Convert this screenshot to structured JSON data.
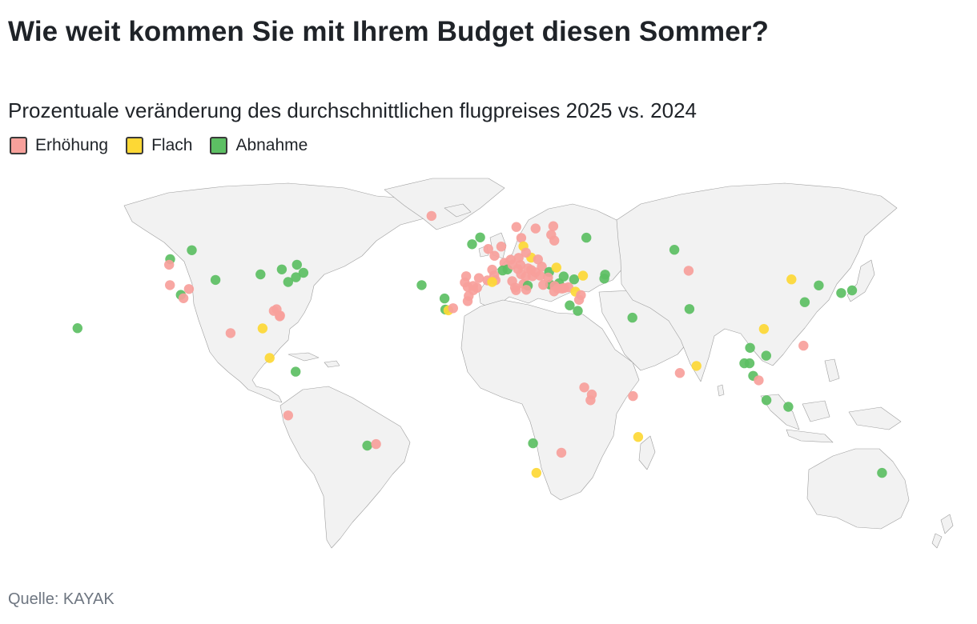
{
  "title": "Wie weit kommen Sie mit Ihrem Budget diesen Sommer?",
  "subtitle": "Prozentuale veränderung des durchschnittlichen flugpreises 2025 vs. 2024",
  "legend": [
    {
      "label": "Erhöhung",
      "color": "#f7a09b"
    },
    {
      "label": "Flach",
      "color": "#fdd835"
    },
    {
      "label": "Abnahme",
      "color": "#5cbf63"
    }
  ],
  "source": "Quelle: KAYAK",
  "chart_data": {
    "type": "scatter",
    "projection": "equirectangular world map",
    "categories": [
      "Erhöhung",
      "Flach",
      "Abnahme"
    ],
    "colors": {
      "Erhöhung": "#f7a09b",
      "Flach": "#fdd835",
      "Abnahme": "#5cbf63",
      "land": "#f2f2f2"
    },
    "points": [
      {
        "lon": -157.9,
        "lat": 21.3,
        "cat": "Abnahme"
      },
      {
        "lon": -122.3,
        "lat": 47.6,
        "cat": "Abnahme"
      },
      {
        "lon": -122.7,
        "lat": 45.5,
        "cat": "Erhöhung"
      },
      {
        "lon": -114.0,
        "lat": 51.0,
        "cat": "Abnahme"
      },
      {
        "lon": -122.4,
        "lat": 37.7,
        "cat": "Erhöhung"
      },
      {
        "lon": -118.2,
        "lat": 34.0,
        "cat": "Abnahme"
      },
      {
        "lon": -117.2,
        "lat": 32.7,
        "cat": "Erhöhung"
      },
      {
        "lon": -115.1,
        "lat": 36.2,
        "cat": "Erhöhung"
      },
      {
        "lon": -104.9,
        "lat": 39.7,
        "cat": "Abnahme"
      },
      {
        "lon": -87.6,
        "lat": 41.8,
        "cat": "Abnahme"
      },
      {
        "lon": -79.4,
        "lat": 43.7,
        "cat": "Abnahme"
      },
      {
        "lon": -73.6,
        "lat": 45.5,
        "cat": "Abnahme"
      },
      {
        "lon": -71.1,
        "lat": 42.4,
        "cat": "Abnahme"
      },
      {
        "lon": -74.0,
        "lat": 40.7,
        "cat": "Abnahme"
      },
      {
        "lon": -77.0,
        "lat": 38.9,
        "cat": "Abnahme"
      },
      {
        "lon": -80.2,
        "lat": 25.8,
        "cat": "Erhöhung"
      },
      {
        "lon": -81.4,
        "lat": 28.5,
        "cat": "Erhöhung"
      },
      {
        "lon": -82.5,
        "lat": 27.9,
        "cat": "Erhöhung"
      },
      {
        "lon": -80.1,
        "lat": 26.1,
        "cat": "Erhöhung"
      },
      {
        "lon": -99.1,
        "lat": 19.4,
        "cat": "Erhöhung"
      },
      {
        "lon": -86.8,
        "lat": 21.2,
        "cat": "Flach"
      },
      {
        "lon": -84.1,
        "lat": 9.9,
        "cat": "Flach"
      },
      {
        "lon": -74.1,
        "lat": 4.7,
        "cat": "Abnahme"
      },
      {
        "lon": -77.0,
        "lat": -12.0,
        "cat": "Erhöhung"
      },
      {
        "lon": -46.6,
        "lat": -23.5,
        "cat": "Abnahme"
      },
      {
        "lon": -43.2,
        "lat": -22.9,
        "cat": "Erhöhung"
      },
      {
        "lon": -21.9,
        "lat": 64.1,
        "cat": "Erhöhung"
      },
      {
        "lon": -25.7,
        "lat": 37.7,
        "cat": "Abnahme"
      },
      {
        "lon": -16.9,
        "lat": 32.6,
        "cat": "Abnahme"
      },
      {
        "lon": -16.6,
        "lat": 28.4,
        "cat": "Abnahme"
      },
      {
        "lon": -15.4,
        "lat": 28.1,
        "cat": "Flach"
      },
      {
        "lon": -13.6,
        "lat": 28.9,
        "cat": "Erhöhung"
      },
      {
        "lon": -6.3,
        "lat": 53.3,
        "cat": "Abnahme"
      },
      {
        "lon": -3.2,
        "lat": 55.9,
        "cat": "Abnahme"
      },
      {
        "lon": -0.1,
        "lat": 51.5,
        "cat": "Erhöhung"
      },
      {
        "lon": 2.3,
        "lat": 48.9,
        "cat": "Erhöhung"
      },
      {
        "lon": 4.9,
        "lat": 52.4,
        "cat": "Erhöhung"
      },
      {
        "lon": 12.6,
        "lat": 55.7,
        "cat": "Erhöhung"
      },
      {
        "lon": 10.7,
        "lat": 59.9,
        "cat": "Erhöhung"
      },
      {
        "lon": 18.1,
        "lat": 59.3,
        "cat": "Erhöhung"
      },
      {
        "lon": 24.9,
        "lat": 60.2,
        "cat": "Erhöhung"
      },
      {
        "lon": 24.1,
        "lat": 56.9,
        "cat": "Erhöhung"
      },
      {
        "lon": 25.3,
        "lat": 54.7,
        "cat": "Erhöhung"
      },
      {
        "lon": 13.4,
        "lat": 52.5,
        "cat": "Flach"
      },
      {
        "lon": 11.6,
        "lat": 48.1,
        "cat": "Erhöhung"
      },
      {
        "lon": 16.4,
        "lat": 48.2,
        "cat": "Flach"
      },
      {
        "lon": 14.4,
        "lat": 50.1,
        "cat": "Erhöhung"
      },
      {
        "lon": 19.0,
        "lat": 47.5,
        "cat": "Erhöhung"
      },
      {
        "lon": 8.5,
        "lat": 47.4,
        "cat": "Erhöhung"
      },
      {
        "lon": 6.1,
        "lat": 46.2,
        "cat": "Erhöhung"
      },
      {
        "lon": 7.3,
        "lat": 43.7,
        "cat": "Abnahme"
      },
      {
        "lon": 5.4,
        "lat": 43.3,
        "cat": "Abnahme"
      },
      {
        "lon": 1.4,
        "lat": 43.6,
        "cat": "Erhöhung"
      },
      {
        "lon": -8.6,
        "lat": 41.1,
        "cat": "Erhöhung"
      },
      {
        "lon": -9.1,
        "lat": 38.7,
        "cat": "Erhöhung"
      },
      {
        "lon": -3.7,
        "lat": 40.4,
        "cat": "Erhöhung"
      },
      {
        "lon": 2.2,
        "lat": 41.4,
        "cat": "Erhöhung"
      },
      {
        "lon": -0.4,
        "lat": 39.5,
        "cat": "Erhöhung"
      },
      {
        "lon": -4.4,
        "lat": 36.7,
        "cat": "Erhöhung"
      },
      {
        "lon": -8.0,
        "lat": 37.0,
        "cat": "Erhöhung"
      },
      {
        "lon": -5.9,
        "lat": 37.4,
        "cat": "Erhöhung"
      },
      {
        "lon": 2.7,
        "lat": 39.6,
        "cat": "Erhöhung"
      },
      {
        "lon": 1.4,
        "lat": 38.9,
        "cat": "Flach"
      },
      {
        "lon": 9.2,
        "lat": 45.5,
        "cat": "Erhöhung"
      },
      {
        "lon": 12.3,
        "lat": 45.4,
        "cat": "Erhöhung"
      },
      {
        "lon": 11.3,
        "lat": 43.8,
        "cat": "Erhöhung"
      },
      {
        "lon": 12.5,
        "lat": 41.9,
        "cat": "Erhöhung"
      },
      {
        "lon": 14.3,
        "lat": 40.9,
        "cat": "Erhöhung"
      },
      {
        "lon": 9.1,
        "lat": 39.2,
        "cat": "Erhöhung"
      },
      {
        "lon": 13.4,
        "lat": 38.1,
        "cat": "Erhöhung"
      },
      {
        "lon": 15.1,
        "lat": 37.5,
        "cat": "Abnahme"
      },
      {
        "lon": 16.9,
        "lat": 41.1,
        "cat": "Erhöhung"
      },
      {
        "lon": 14.5,
        "lat": 35.9,
        "cat": "Erhöhung"
      },
      {
        "lon": 16.4,
        "lat": 43.5,
        "cat": "Erhöhung"
      },
      {
        "lon": 18.1,
        "lat": 42.6,
        "cat": "Erhöhung"
      },
      {
        "lon": 15.2,
        "lat": 44.1,
        "cat": "Erhöhung"
      },
      {
        "lon": 20.5,
        "lat": 44.8,
        "cat": "Erhöhung"
      },
      {
        "lon": 19.8,
        "lat": 41.3,
        "cat": "Erhöhung"
      },
      {
        "lon": 23.3,
        "lat": 42.7,
        "cat": "Abnahme"
      },
      {
        "lon": 26.1,
        "lat": 44.4,
        "cat": "Flach"
      },
      {
        "lon": 28.9,
        "lat": 41.0,
        "cat": "Abnahme"
      },
      {
        "lon": 32.9,
        "lat": 39.9,
        "cat": "Abnahme"
      },
      {
        "lon": 30.7,
        "lat": 36.9,
        "cat": "Erhöhung"
      },
      {
        "lon": 27.1,
        "lat": 38.4,
        "cat": "Abnahme"
      },
      {
        "lon": 29.1,
        "lat": 36.6,
        "cat": "Erhöhung"
      },
      {
        "lon": 23.7,
        "lat": 37.9,
        "cat": "Abnahme"
      },
      {
        "lon": 22.9,
        "lat": 40.6,
        "cat": "Erhöhung"
      },
      {
        "lon": 25.4,
        "lat": 37.4,
        "cat": "Erhöhung"
      },
      {
        "lon": 25.2,
        "lat": 35.3,
        "cat": "Erhöhung"
      },
      {
        "lon": 21.0,
        "lat": 37.8,
        "cat": "Erhöhung"
      },
      {
        "lon": 26.6,
        "lat": 36.4,
        "cat": "Erhöhung"
      },
      {
        "lon": 28.2,
        "lat": 36.4,
        "cat": "Erhöhung"
      },
      {
        "lon": 33.4,
        "lat": 35.2,
        "cat": "Flach"
      },
      {
        "lon": 35.5,
        "lat": 33.9,
        "cat": "Erhöhung"
      },
      {
        "lon": 34.8,
        "lat": 32.1,
        "cat": "Erhöhung"
      },
      {
        "lon": 36.3,
        "lat": 41.3,
        "cat": "Flach"
      },
      {
        "lon": 44.8,
        "lat": 41.7,
        "cat": "Abnahme"
      },
      {
        "lon": 44.5,
        "lat": 40.2,
        "cat": "Abnahme"
      },
      {
        "lon": 37.6,
        "lat": 55.8,
        "cat": "Abnahme"
      },
      {
        "lon": 31.2,
        "lat": 30.0,
        "cat": "Abnahme"
      },
      {
        "lon": 34.3,
        "lat": 27.9,
        "cat": "Abnahme"
      },
      {
        "lon": 10.2,
        "lat": 36.8,
        "cat": "Erhöhung"
      },
      {
        "lon": 10.6,
        "lat": 35.8,
        "cat": "Erhöhung"
      },
      {
        "lon": -7.6,
        "lat": 33.6,
        "cat": "Erhöhung"
      },
      {
        "lon": -8.0,
        "lat": 31.6,
        "cat": "Erhöhung"
      },
      {
        "lon": -5.8,
        "lat": 35.8,
        "cat": "Erhöhung"
      },
      {
        "lon": 55.3,
        "lat": 25.3,
        "cat": "Abnahme"
      },
      {
        "lon": 71.4,
        "lat": 51.2,
        "cat": "Abnahme"
      },
      {
        "lon": 76.9,
        "lat": 43.2,
        "cat": "Erhöhung"
      },
      {
        "lon": 77.2,
        "lat": 28.6,
        "cat": "Abnahme"
      },
      {
        "lon": 73.5,
        "lat": 4.2,
        "cat": "Erhöhung"
      },
      {
        "lon": 79.9,
        "lat": 6.9,
        "cat": "Flach"
      },
      {
        "lon": 36.8,
        "lat": -1.3,
        "cat": "Erhöhung"
      },
      {
        "lon": 39.7,
        "lat": -4.0,
        "cat": "Erhöhung"
      },
      {
        "lon": 39.2,
        "lat": -6.2,
        "cat": "Erhöhung"
      },
      {
        "lon": 55.5,
        "lat": -4.6,
        "cat": "Erhöhung"
      },
      {
        "lon": 57.5,
        "lat": -20.2,
        "cat": "Flach"
      },
      {
        "lon": 17.1,
        "lat": -22.6,
        "cat": "Abnahme"
      },
      {
        "lon": 28.0,
        "lat": -26.2,
        "cat": "Erhöhung"
      },
      {
        "lon": 18.4,
        "lat": -33.9,
        "cat": "Flach"
      },
      {
        "lon": 116.4,
        "lat": 39.9,
        "cat": "Flach"
      },
      {
        "lon": 126.9,
        "lat": 37.6,
        "cat": "Abnahme"
      },
      {
        "lon": 121.5,
        "lat": 31.2,
        "cat": "Abnahme"
      },
      {
        "lon": 139.7,
        "lat": 35.7,
        "cat": "Abnahme"
      },
      {
        "lon": 135.5,
        "lat": 34.7,
        "cat": "Abnahme"
      },
      {
        "lon": 105.8,
        "lat": 21.0,
        "cat": "Flach"
      },
      {
        "lon": 100.5,
        "lat": 13.8,
        "cat": "Abnahme"
      },
      {
        "lon": 106.7,
        "lat": 10.8,
        "cat": "Abnahme"
      },
      {
        "lon": 100.3,
        "lat": 7.9,
        "cat": "Abnahme"
      },
      {
        "lon": 98.3,
        "lat": 7.9,
        "cat": "Abnahme"
      },
      {
        "lon": 101.7,
        "lat": 3.1,
        "cat": "Abnahme"
      },
      {
        "lon": 103.8,
        "lat": 1.4,
        "cat": "Erhöhung"
      },
      {
        "lon": 121.0,
        "lat": 14.6,
        "cat": "Erhöhung"
      },
      {
        "lon": 106.8,
        "lat": -6.2,
        "cat": "Abnahme"
      },
      {
        "lon": 115.2,
        "lat": -8.7,
        "cat": "Abnahme"
      },
      {
        "lon": 151.2,
        "lat": -33.9,
        "cat": "Abnahme"
      }
    ]
  }
}
